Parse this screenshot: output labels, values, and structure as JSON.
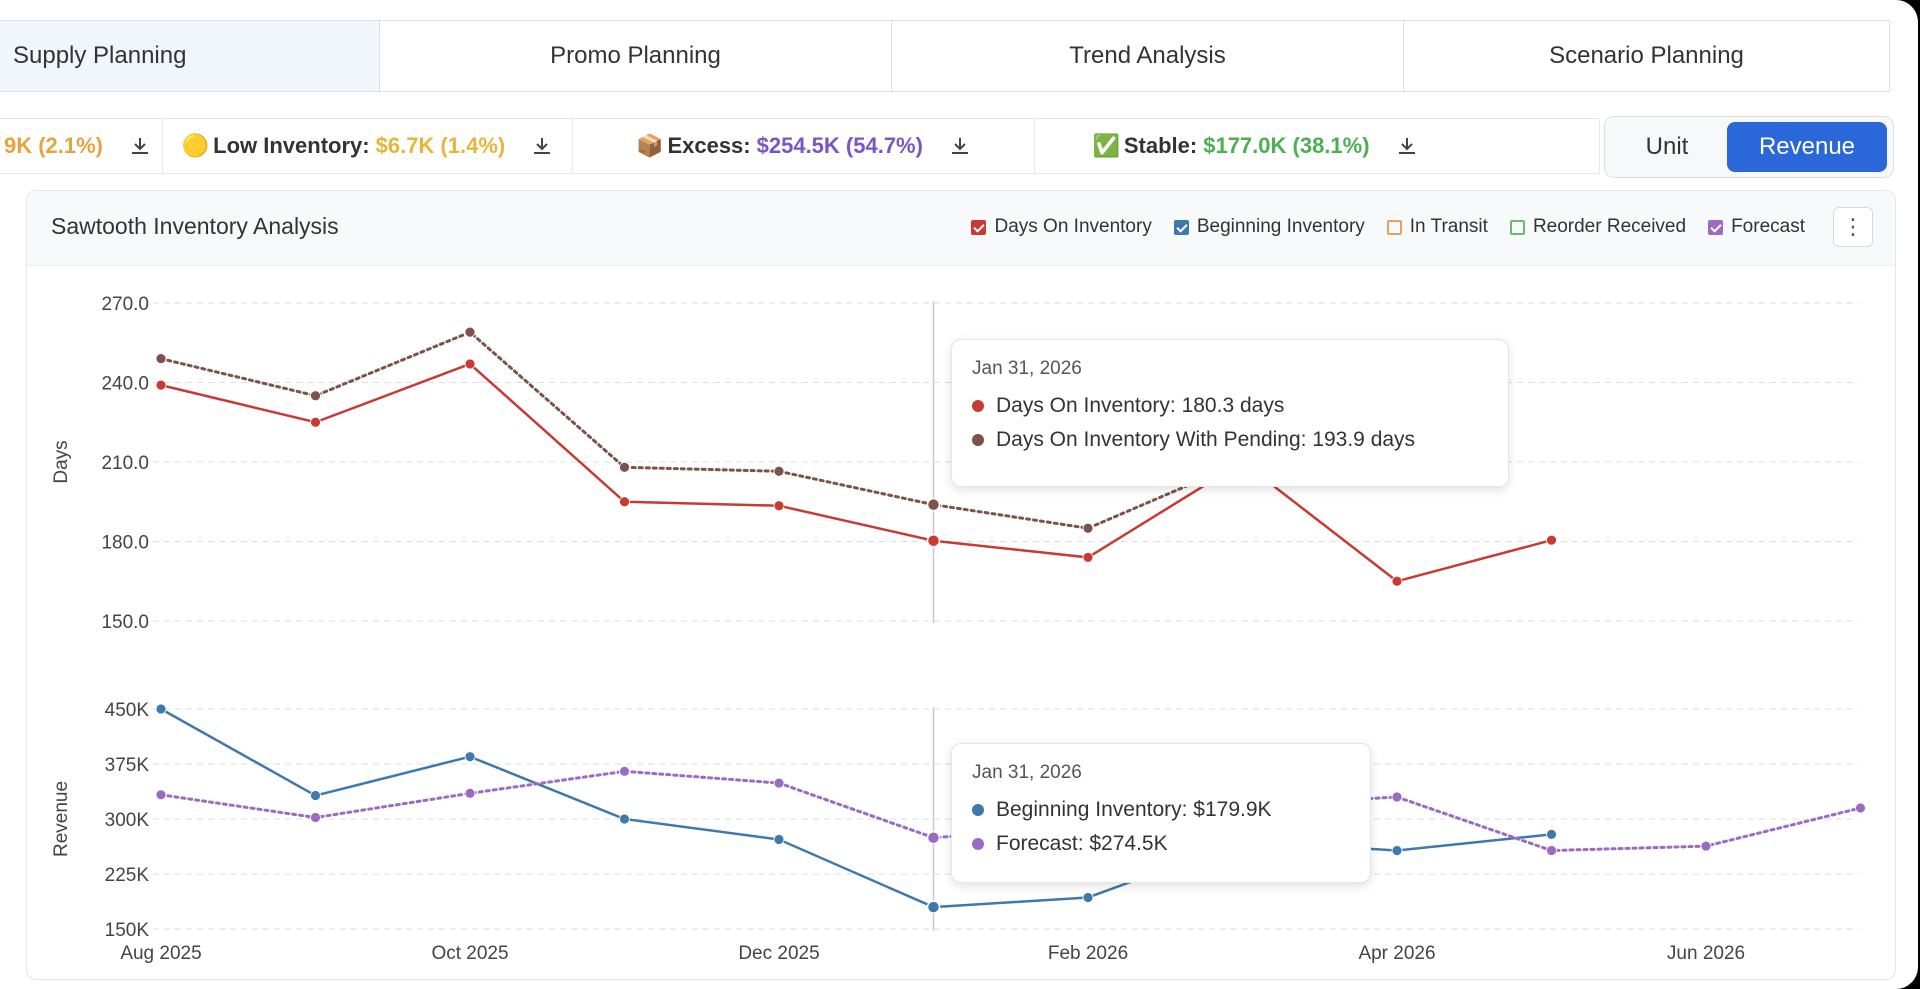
{
  "tabs": [
    {
      "label": "Supply Planning",
      "active": true
    },
    {
      "label": "Promo Planning",
      "active": false
    },
    {
      "label": "Trend Analysis",
      "active": false
    },
    {
      "label": "Scenario Planning",
      "active": false
    }
  ],
  "stats": [
    {
      "icon": "",
      "label": "",
      "value": "9K (2.1%)",
      "color": "#e8a43a"
    },
    {
      "icon": "🟡",
      "label": "Low Inventory:",
      "value": "$6.7K (1.4%)",
      "color": "#e8b53a"
    },
    {
      "icon": "📦",
      "label": "Excess:",
      "value": "$254.5K (54.7%)",
      "color": "#7a55c7"
    },
    {
      "icon": "✅",
      "label": "Stable:",
      "value": "$177.0K (38.1%)",
      "color": "#4caf50"
    }
  ],
  "toggle": {
    "options": [
      "Unit",
      "Revenue"
    ],
    "selected": "Revenue"
  },
  "panel": {
    "title": "Sawtooth Inventory Analysis",
    "legend": [
      {
        "label": "Days On Inventory",
        "color": "#c83a33",
        "checked": true
      },
      {
        "label": "Beginning Inventory",
        "color": "#3f78ad",
        "checked": true
      },
      {
        "label": "In Transit",
        "color": "#e8a060",
        "checked": false
      },
      {
        "label": "Reorder Received",
        "color": "#6dbb6a",
        "checked": false
      },
      {
        "label": "Forecast",
        "color": "#9b6bc4",
        "checked": true
      }
    ],
    "more_label": "⋮"
  },
  "chart_data": [
    {
      "type": "line",
      "ylabel": "Days",
      "ylim": [
        150,
        270
      ],
      "yticks": [
        "270.0",
        "240.0",
        "210.0",
        "180.0",
        "150.0"
      ],
      "x": [
        "2025-08-01",
        "2025-09-01",
        "2025-10-01",
        "2025-11-01",
        "2025-12-01",
        "2026-01-01",
        "2026-02-01",
        "2026-03-01",
        "2026-04-01",
        "2026-05-01"
      ],
      "series": [
        {
          "name": "Days On Inventory",
          "color": "#c83a33",
          "values": [
            239,
            225,
            247,
            195,
            193.5,
            180.3,
            174,
            210,
            165,
            180.5
          ]
        },
        {
          "name": "Days On Inventory With Pending",
          "color": "#7d5248",
          "values": [
            249,
            235,
            259,
            208,
            206.5,
            193.9,
            185,
            210,
            null,
            null
          ]
        }
      ],
      "tooltip": {
        "date": "Jan 31, 2026",
        "rows": [
          {
            "label": "Days On Inventory: 180.3 days",
            "color": "#c83a33"
          },
          {
            "label": "Days On Inventory With Pending: 193.9 days",
            "color": "#7d5248"
          }
        ]
      }
    },
    {
      "type": "line",
      "ylabel": "Revenue",
      "ylim": [
        150000,
        450000
      ],
      "yticks": [
        "450K",
        "375K",
        "300K",
        "225K",
        "150K"
      ],
      "xticks": [
        "Aug 2025",
        "Oct 2025",
        "Dec 2025",
        "Feb 2026",
        "Apr 2026",
        "Jun 2026"
      ],
      "x": [
        "2025-08-01",
        "2025-09-01",
        "2025-10-01",
        "2025-11-01",
        "2025-12-01",
        "2026-01-01",
        "2026-02-01",
        "2026-03-01",
        "2026-04-01",
        "2026-05-01",
        "2026-06-01",
        "2026-07-01"
      ],
      "series": [
        {
          "name": "Beginning Inventory",
          "color": "#3f78ad",
          "values": [
            450000,
            332000,
            385000,
            300000,
            272000,
            179900,
            193000,
            270000,
            257000,
            279000,
            null,
            null
          ]
        },
        {
          "name": "Forecast",
          "color": "#9b6bc4",
          "values": [
            333000,
            302000,
            335000,
            365000,
            349000,
            274500,
            290000,
            318000,
            330000,
            257000,
            263000,
            315000
          ]
        }
      ],
      "tooltip": {
        "date": "Jan 31, 2026",
        "rows": [
          {
            "label": "Beginning Inventory: $179.9K",
            "color": "#3f78ad"
          },
          {
            "label": "Forecast: $274.5K",
            "color": "#9b6bc4"
          }
        ]
      }
    }
  ]
}
